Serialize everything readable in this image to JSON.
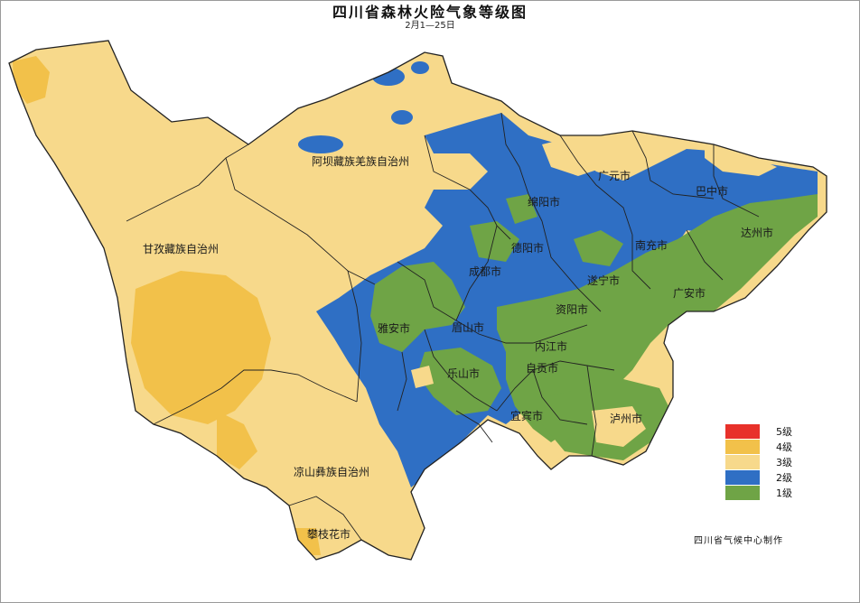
{
  "map": {
    "title": "四川省森林火险气象等级图",
    "subtitle": "2月1—25日",
    "credit": "四川省气候中心制作",
    "colors": {
      "level5": "#e8312a",
      "level4": "#f2c14a",
      "level3": "#f7d98b",
      "level2": "#2f6fc4",
      "level1": "#6fa446",
      "border": "#222222"
    },
    "legend": [
      {
        "level": 5,
        "label": "5级",
        "color": "#e8312a"
      },
      {
        "level": 4,
        "label": "4级",
        "color": "#f2c14a"
      },
      {
        "level": 3,
        "label": "3级",
        "color": "#f7d98b"
      },
      {
        "level": 2,
        "label": "2级",
        "color": "#2f6fc4"
      },
      {
        "level": 1,
        "label": "1级",
        "color": "#6fa446"
      }
    ],
    "regions": [
      "阿坝藏族羌族自治州",
      "甘孜藏族自治州",
      "凉山彝族自治州",
      "攀枝花市",
      "广元市",
      "巴中市",
      "绵阳市",
      "达州市",
      "德阳市",
      "南充市",
      "成都市",
      "遂宁市",
      "广安市",
      "雅安市",
      "资阳市",
      "眉山市",
      "内江市",
      "乐山市",
      "自贡市",
      "宜宾市",
      "泸州市"
    ]
  }
}
